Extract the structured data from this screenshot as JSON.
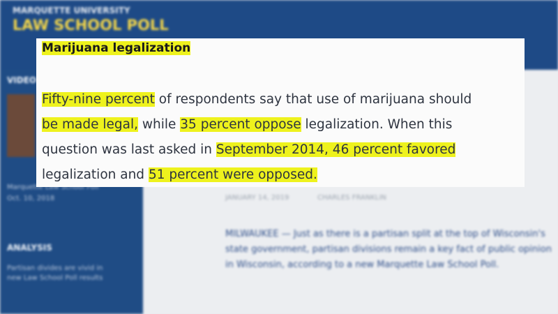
{
  "site": {
    "logo_line1": "MARQUETTE UNIVERSITY",
    "logo_line2": "LAW SCHOOL POLL"
  },
  "sidebar": {
    "video_heading": "VIDEO",
    "video_caption": "Marquette Law School Poll",
    "video_date": "Oct. 10, 2018",
    "analysis_heading": "ANALYSIS",
    "analysis_link": "Partisan divides are vivid in new Law School Poll results"
  },
  "article": {
    "date": "JANUARY 14, 2019",
    "author": "CHARLES FRANKLIN",
    "body": "MILWAUKEE — Just as there is a partisan split at the top of Wisconsin's state government, partisan divisions remain a key fact of public opinion in Wisconsin, according to a new Marquette Law School Poll."
  },
  "card": {
    "heading": "Marijuana legalization",
    "lines": [
      [
        {
          "text": "Fifty-nine percent",
          "highlight": true
        },
        {
          "text": " of respondents say that use of marijuana should",
          "highlight": false
        }
      ],
      [
        {
          "text": "be made legal,",
          "highlight": true
        },
        {
          "text": " while ",
          "highlight": false
        },
        {
          "text": "35 percent oppose",
          "highlight": true
        },
        {
          "text": " legalization. When this",
          "highlight": false
        }
      ],
      [
        {
          "text": "question was last asked in ",
          "highlight": false
        },
        {
          "text": "September 2014, 46 percent favored",
          "highlight": true
        }
      ],
      [
        {
          "text": "legalization and ",
          "highlight": false
        },
        {
          "text": "51 percent were opposed.",
          "highlight": true
        }
      ]
    ]
  }
}
